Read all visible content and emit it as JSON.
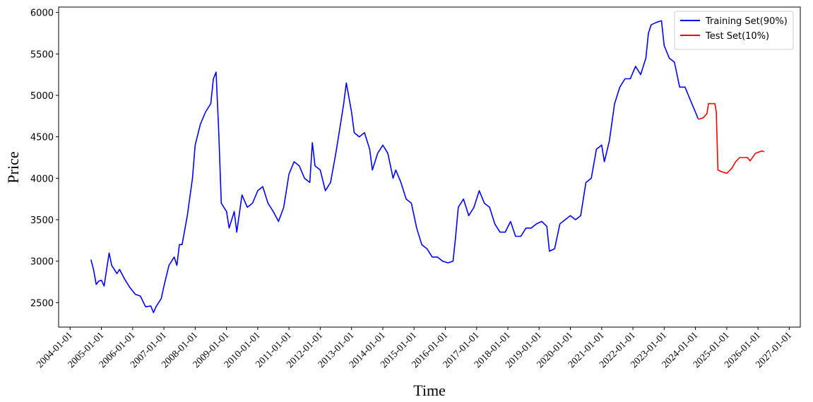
{
  "chart_data": {
    "type": "line",
    "xlabel": "Time",
    "ylabel": "Price",
    "xlim": [
      "2003-08-20",
      "2027-05-10"
    ],
    "xticks": [
      "2004-01-01",
      "2005-01-01",
      "2006-01-01",
      "2007-01-01",
      "2008-01-01",
      "2009-01-01",
      "2010-01-01",
      "2011-01-01",
      "2012-01-01",
      "2013-01-01",
      "2014-01-01",
      "2015-01-01",
      "2016-01-01",
      "2017-01-01",
      "2018-01-01",
      "2019-01-01",
      "2020-01-01",
      "2021-01-01",
      "2022-01-01",
      "2023-01-01",
      "2024-01-01",
      "2025-01-01",
      "2026-01-01",
      "2027-01-01"
    ],
    "ylim": [
      2205,
      6065
    ],
    "yticks": [
      2500,
      3000,
      3500,
      4000,
      4500,
      5000,
      5500,
      6000
    ],
    "legend": "upper right",
    "series": [
      {
        "name": "Training Set(90%)",
        "color": "#0000ff",
        "x": [
          "2004-09-01",
          "2004-10-01",
          "2004-11-01",
          "2004-12-01",
          "2005-01-01",
          "2005-02-01",
          "2005-04-01",
          "2005-05-01",
          "2005-06-01",
          "2005-07-01",
          "2005-08-01",
          "2005-10-01",
          "2005-12-01",
          "2006-02-01",
          "2006-04-01",
          "2006-06-01",
          "2006-08-01",
          "2006-09-01",
          "2006-10-01",
          "2006-12-01",
          "2007-01-01",
          "2007-03-01",
          "2007-05-01",
          "2007-06-01",
          "2007-07-01",
          "2007-08-01",
          "2007-10-01",
          "2007-12-01",
          "2008-01-01",
          "2008-03-01",
          "2008-05-01",
          "2008-07-01",
          "2008-08-01",
          "2008-09-01",
          "2008-10-01",
          "2008-11-01",
          "2009-01-01",
          "2009-02-01",
          "2009-04-01",
          "2009-05-01",
          "2009-07-01",
          "2009-09-01",
          "2009-11-01",
          "2010-01-01",
          "2010-03-01",
          "2010-05-01",
          "2010-07-01",
          "2010-09-01",
          "2010-11-01",
          "2011-01-01",
          "2011-03-01",
          "2011-05-01",
          "2011-07-01",
          "2011-09-01",
          "2011-10-01",
          "2011-11-01",
          "2012-01-01",
          "2012-03-01",
          "2012-05-01",
          "2012-07-01",
          "2012-08-01",
          "2012-10-01",
          "2012-11-01",
          "2013-01-01",
          "2013-02-01",
          "2013-04-01",
          "2013-06-01",
          "2013-08-01",
          "2013-09-01",
          "2013-11-01",
          "2014-01-01",
          "2014-03-01",
          "2014-05-01",
          "2014-06-01",
          "2014-08-01",
          "2014-10-01",
          "2014-12-01",
          "2015-02-01",
          "2015-04-01",
          "2015-06-01",
          "2015-08-01",
          "2015-10-01",
          "2015-12-01",
          "2016-02-01",
          "2016-04-01",
          "2016-05-01",
          "2016-06-01",
          "2016-08-01",
          "2016-10-01",
          "2016-12-01",
          "2017-02-01",
          "2017-04-01",
          "2017-06-01",
          "2017-08-01",
          "2017-10-01",
          "2017-12-01",
          "2018-02-01",
          "2018-04-01",
          "2018-06-01",
          "2018-08-01",
          "2018-10-01",
          "2018-12-01",
          "2019-02-01",
          "2019-04-01",
          "2019-05-01",
          "2019-07-01",
          "2019-09-01",
          "2019-11-01",
          "2020-01-01",
          "2020-03-01",
          "2020-05-01",
          "2020-07-01",
          "2020-09-01",
          "2020-11-01",
          "2021-01-01",
          "2021-02-01",
          "2021-04-01",
          "2021-06-01",
          "2021-08-01",
          "2021-10-01",
          "2021-12-01",
          "2022-02-01",
          "2022-04-01",
          "2022-06-01",
          "2022-07-01",
          "2022-08-01",
          "2022-10-01",
          "2022-12-01",
          "2023-01-01",
          "2023-03-01",
          "2023-05-01",
          "2023-07-01",
          "2023-09-01",
          "2023-11-01",
          "2024-01-01",
          "2024-02-01"
        ],
        "values": [
          3020,
          2900,
          2720,
          2760,
          2770,
          2700,
          3100,
          2950,
          2900,
          2850,
          2900,
          2780,
          2680,
          2600,
          2580,
          2450,
          2460,
          2380,
          2450,
          2550,
          2700,
          2950,
          3050,
          2950,
          3200,
          3200,
          3550,
          4000,
          4400,
          4650,
          4800,
          4900,
          5200,
          5280,
          4600,
          3700,
          3600,
          3400,
          3600,
          3350,
          3800,
          3650,
          3700,
          3850,
          3900,
          3700,
          3600,
          3480,
          3650,
          4050,
          4200,
          4150,
          4000,
          3950,
          4430,
          4150,
          4100,
          3850,
          3950,
          4300,
          4500,
          4900,
          5150,
          4800,
          4550,
          4500,
          4550,
          4350,
          4100,
          4300,
          4400,
          4300,
          4000,
          4100,
          3950,
          3750,
          3700,
          3400,
          3200,
          3150,
          3050,
          3050,
          3000,
          2980,
          3000,
          3300,
          3650,
          3750,
          3550,
          3650,
          3850,
          3700,
          3650,
          3450,
          3350,
          3350,
          3480,
          3300,
          3300,
          3400,
          3400,
          3450,
          3480,
          3420,
          3120,
          3150,
          3450,
          3500,
          3550,
          3500,
          3550,
          3950,
          4000,
          4350,
          4400,
          4200,
          4450,
          4900,
          5100,
          5200,
          5200,
          5350,
          5250,
          5450,
          5750,
          5850,
          5880,
          5900,
          5600,
          5450,
          5400,
          5100,
          5100,
          4950,
          4800,
          4720
        ]
      },
      {
        "name": "Test Set(10%)",
        "color": "#ff0000",
        "x": [
          "2024-02-01",
          "2024-04-01",
          "2024-05-15",
          "2024-06-01",
          "2024-08-15",
          "2024-09-01",
          "2024-09-20",
          "2024-11-01",
          "2025-01-01",
          "2025-03-01",
          "2025-04-15",
          "2025-06-01",
          "2025-09-01",
          "2025-10-01",
          "2025-12-01",
          "2026-02-15",
          "2026-03-15"
        ],
        "values": [
          4710,
          4730,
          4780,
          4900,
          4900,
          4800,
          4100,
          4080,
          4060,
          4120,
          4200,
          4250,
          4250,
          4210,
          4300,
          4330,
          4320
        ]
      }
    ]
  }
}
